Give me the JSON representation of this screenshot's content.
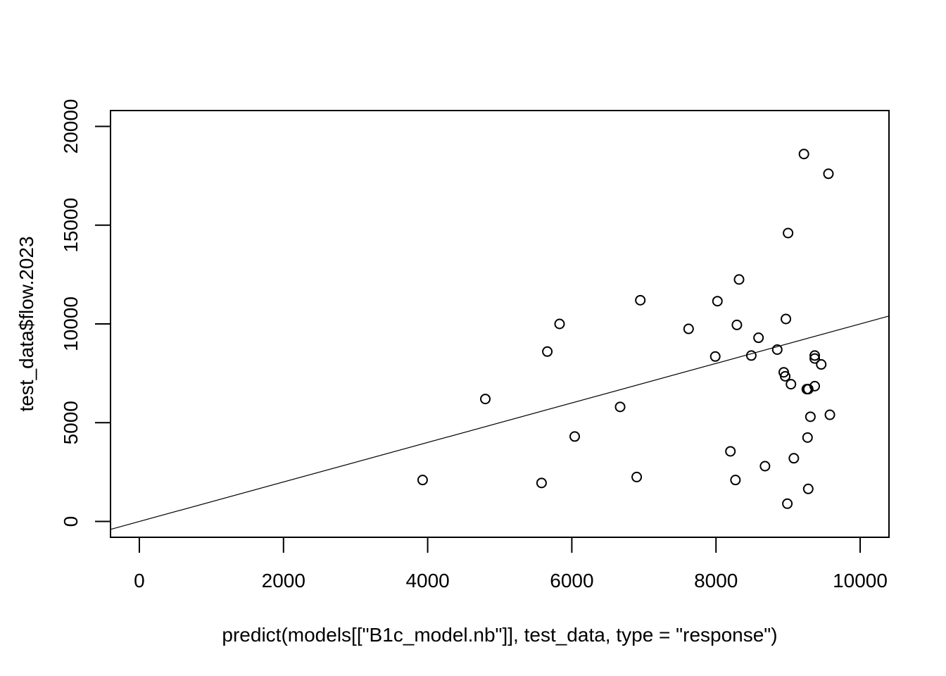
{
  "chart_data": {
    "type": "scatter",
    "title": "",
    "xlabel": "predict(models[[\"B1c_model.nb\"]], test_data, type = \"response\")",
    "ylabel": "test_data$flow.2023",
    "xlim": [
      -400,
      10400
    ],
    "ylim": [
      -800,
      20800
    ],
    "x_ticks": [
      0,
      2000,
      4000,
      6000,
      8000,
      10000
    ],
    "y_ticks": [
      0,
      5000,
      10000,
      15000,
      20000
    ],
    "x_tick_labels": [
      "0",
      "2000",
      "4000",
      "6000",
      "8000",
      "10000"
    ],
    "y_tick_labels": [
      "0",
      "5000",
      "10000",
      "15000",
      "20000"
    ],
    "grid": false,
    "marker": "open-circle",
    "reference_line": {
      "intercept": 0,
      "slope": 1
    },
    "points": [
      [
        3930,
        2100
      ],
      [
        4800,
        6200
      ],
      [
        5580,
        1950
      ],
      [
        5660,
        8600
      ],
      [
        5830,
        10000
      ],
      [
        6040,
        4300
      ],
      [
        6670,
        5800
      ],
      [
        6900,
        2250
      ],
      [
        6950,
        11200
      ],
      [
        7620,
        9750
      ],
      [
        7990,
        8350
      ],
      [
        8020,
        11150
      ],
      [
        8200,
        3550
      ],
      [
        8270,
        2100
      ],
      [
        8290,
        9950
      ],
      [
        8320,
        12250
      ],
      [
        8490,
        8400
      ],
      [
        8590,
        9300
      ],
      [
        8680,
        2800
      ],
      [
        8850,
        8700
      ],
      [
        8940,
        7550
      ],
      [
        8960,
        7350
      ],
      [
        8970,
        10250
      ],
      [
        8990,
        900
      ],
      [
        9000,
        14600
      ],
      [
        9040,
        6950
      ],
      [
        9080,
        3200
      ],
      [
        9220,
        18600
      ],
      [
        9260,
        6700
      ],
      [
        9270,
        4250
      ],
      [
        9280,
        1650
      ],
      [
        9280,
        6700
      ],
      [
        9310,
        5300
      ],
      [
        9370,
        6850
      ],
      [
        9370,
        8400
      ],
      [
        9370,
        8250
      ],
      [
        9460,
        7950
      ],
      [
        9560,
        17600
      ],
      [
        9580,
        5400
      ]
    ]
  }
}
